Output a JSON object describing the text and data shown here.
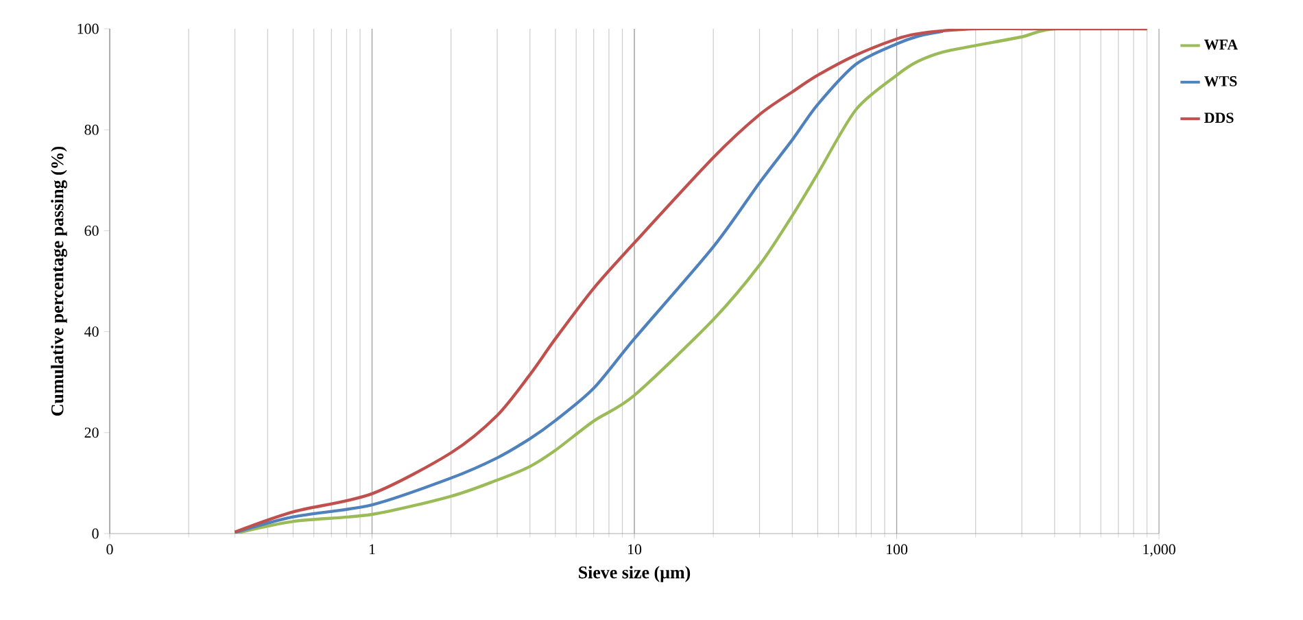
{
  "chart_data": {
    "type": "line",
    "xlabel": "Sieve size (µm)",
    "ylabel": "Cumulative percentage passing (%)",
    "log": "x",
    "grid": "x",
    "legend": "top right",
    "marker": "none",
    "line_style": "solid",
    "xlim": [
      0.1,
      1000
    ],
    "ylim": [
      0,
      100
    ],
    "xticks": [
      {
        "value": 0.1,
        "label": "0"
      },
      1,
      10,
      100,
      {
        "value": 1000,
        "label": "1,000"
      }
    ],
    "yticks": [
      0,
      20,
      40,
      60,
      80,
      100
    ],
    "x": [
      0.3,
      0.5,
      1,
      2,
      3,
      4,
      5,
      7,
      10,
      20,
      30,
      40,
      50,
      70,
      100,
      120,
      150,
      200,
      300,
      400,
      900
    ],
    "series": [
      {
        "name": "WFA",
        "color": "#9bbb59",
        "values": [
          0,
          2.4,
          3.8,
          7.4,
          10.6,
          13.3,
          16.5,
          22.3,
          27.4,
          42.4,
          53.2,
          63,
          71.3,
          84,
          90.8,
          93.5,
          95.4,
          96.7,
          98.4,
          100,
          100
        ]
      },
      {
        "name": "WTS",
        "color": "#4f81bd",
        "values": [
          0.2,
          3.3,
          5.7,
          11,
          15,
          18.8,
          22.4,
          28.8,
          38.6,
          56.8,
          69.5,
          78,
          85,
          93,
          97,
          98.5,
          99.5,
          null,
          null,
          null,
          null
        ]
      },
      {
        "name": "DDS",
        "color": "#c0504d",
        "values": [
          0.3,
          4.3,
          7.9,
          16,
          23.4,
          31.5,
          38.6,
          48.6,
          57.6,
          74.5,
          83,
          87.5,
          90.8,
          94.8,
          98,
          99,
          99.6,
          100,
          100,
          100,
          100
        ]
      }
    ]
  }
}
